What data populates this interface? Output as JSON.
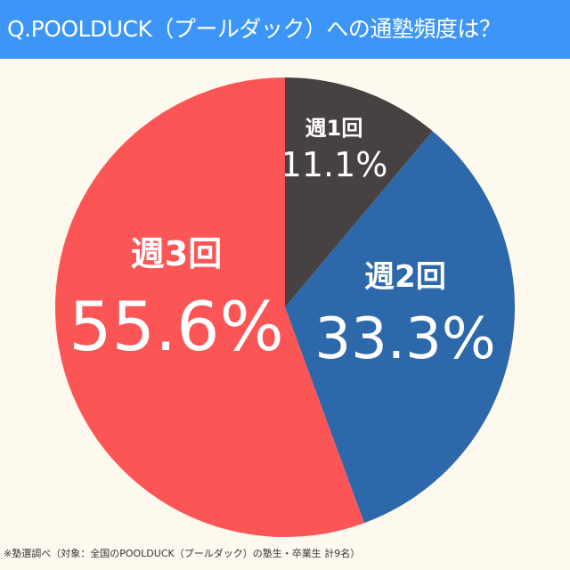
{
  "header": {
    "title": "Q.POOLDUCK（プールダック）への通塾頻度は？"
  },
  "footer": {
    "note": "※塾選調べ（対象：全国のPOOLDUCK（プールダック）の塾生・卒業生 計9名）"
  },
  "chart_data": {
    "type": "pie",
    "title": "Q.POOLDUCK（プールダック）への通塾頻度は？",
    "categories": [
      "週1回",
      "週2回",
      "週3回"
    ],
    "values": [
      11.1,
      33.3,
      55.6
    ],
    "labels": [
      "11.1%",
      "33.3%",
      "55.6%"
    ],
    "colors": [
      "#474142",
      "#2c68aa",
      "#fc5555"
    ],
    "start": "top",
    "direction": "clockwise"
  }
}
